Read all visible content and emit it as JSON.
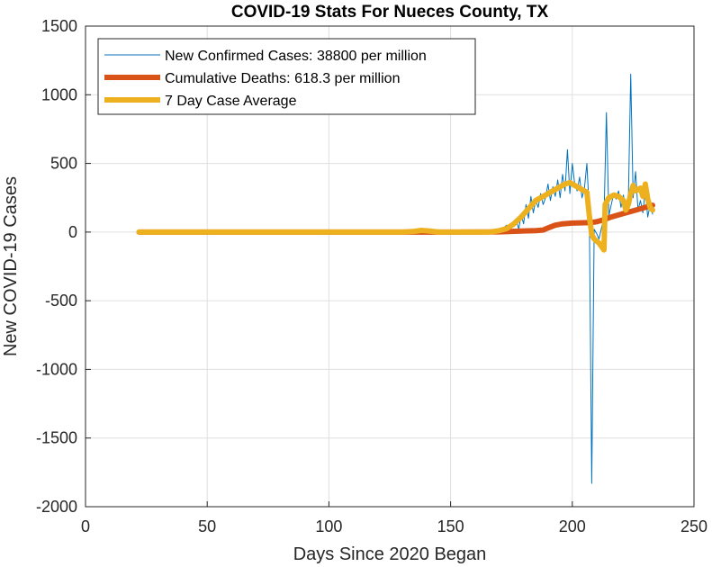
{
  "chart_data": {
    "type": "line",
    "title": "COVID-19 Stats For Nueces County, TX",
    "xlabel": "Days Since 2020 Began",
    "ylabel": "New COVID-19 Cases",
    "xlim": [
      0,
      250
    ],
    "ylim": [
      -2000,
      1500
    ],
    "xticks": [
      0,
      50,
      100,
      150,
      200,
      250
    ],
    "xtick_labels": [
      "0",
      "50",
      "100",
      "150",
      "200",
      "250"
    ],
    "yticks": [
      -2000,
      -1500,
      -1000,
      -500,
      0,
      500,
      1000,
      1500
    ],
    "ytick_labels": [
      "-2000",
      "-1500",
      "-1000",
      "-500",
      "0",
      "500",
      "1000",
      "1500"
    ],
    "grid": true,
    "legend_position": "top-left",
    "series": [
      {
        "name": "New Confirmed Cases: 38800 per million",
        "color": "#0072BD",
        "points": [
          [
            22,
            0
          ],
          [
            60,
            0
          ],
          [
            100,
            0
          ],
          [
            135,
            0
          ],
          [
            138,
            5
          ],
          [
            141,
            2
          ],
          [
            145,
            0
          ],
          [
            160,
            0
          ],
          [
            165,
            2
          ],
          [
            168,
            5
          ],
          [
            170,
            15
          ],
          [
            172,
            35
          ],
          [
            173,
            50
          ],
          [
            174,
            30
          ],
          [
            175,
            60
          ],
          [
            176,
            40
          ],
          [
            177,
            90
          ],
          [
            178,
            20
          ],
          [
            179,
            130
          ],
          [
            180,
            60
          ],
          [
            181,
            200
          ],
          [
            182,
            100
          ],
          [
            183,
            260
          ],
          [
            184,
            140
          ],
          [
            185,
            230
          ],
          [
            186,
            180
          ],
          [
            187,
            280
          ],
          [
            188,
            200
          ],
          [
            189,
            250
          ],
          [
            190,
            350
          ],
          [
            191,
            230
          ],
          [
            192,
            330
          ],
          [
            193,
            260
          ],
          [
            194,
            380
          ],
          [
            195,
            250
          ],
          [
            196,
            420
          ],
          [
            197,
            300
          ],
          [
            198,
            600
          ],
          [
            199,
            280
          ],
          [
            200,
            500
          ],
          [
            201,
            350
          ],
          [
            202,
            300
          ],
          [
            203,
            400
          ],
          [
            204,
            250
          ],
          [
            205,
            320
          ],
          [
            206,
            500
          ],
          [
            207,
            150
          ],
          [
            208,
            -1830
          ],
          [
            209,
            20
          ],
          [
            210,
            -10
          ],
          [
            211,
            -50
          ],
          [
            212,
            30
          ],
          [
            213,
            100
          ],
          [
            214,
            870
          ],
          [
            215,
            120
          ],
          [
            216,
            200
          ],
          [
            217,
            280
          ],
          [
            218,
            240
          ],
          [
            219,
            300
          ],
          [
            220,
            180
          ],
          [
            221,
            270
          ],
          [
            222,
            150
          ],
          [
            223,
            210
          ],
          [
            224,
            1150
          ],
          [
            225,
            250
          ],
          [
            226,
            440
          ],
          [
            227,
            160
          ],
          [
            228,
            230
          ],
          [
            229,
            140
          ],
          [
            230,
            300
          ],
          [
            231,
            110
          ],
          [
            232,
            200
          ],
          [
            233,
            130
          ]
        ]
      },
      {
        "name": "Cumulative Deaths: 618.3 per million",
        "color": "#D95319",
        "points": [
          [
            22,
            0
          ],
          [
            100,
            0
          ],
          [
            150,
            0
          ],
          [
            170,
            2
          ],
          [
            175,
            5
          ],
          [
            180,
            8
          ],
          [
            185,
            10
          ],
          [
            188,
            15
          ],
          [
            190,
            30
          ],
          [
            193,
            50
          ],
          [
            196,
            60
          ],
          [
            200,
            65
          ],
          [
            205,
            68
          ],
          [
            208,
            70
          ],
          [
            210,
            75
          ],
          [
            213,
            90
          ],
          [
            216,
            110
          ],
          [
            220,
            130
          ],
          [
            224,
            150
          ],
          [
            227,
            165
          ],
          [
            230,
            180
          ],
          [
            233,
            195
          ]
        ]
      },
      {
        "name": "7 Day Case Average",
        "color": "#EDB120",
        "points": [
          [
            22,
            0
          ],
          [
            100,
            0
          ],
          [
            130,
            0
          ],
          [
            135,
            5
          ],
          [
            138,
            12
          ],
          [
            141,
            8
          ],
          [
            145,
            0
          ],
          [
            165,
            0
          ],
          [
            168,
            5
          ],
          [
            170,
            10
          ],
          [
            173,
            25
          ],
          [
            176,
            60
          ],
          [
            179,
            110
          ],
          [
            182,
            170
          ],
          [
            185,
            230
          ],
          [
            188,
            260
          ],
          [
            191,
            290
          ],
          [
            194,
            320
          ],
          [
            197,
            350
          ],
          [
            199,
            360
          ],
          [
            201,
            340
          ],
          [
            204,
            310
          ],
          [
            206,
            290
          ],
          [
            207,
            120
          ],
          [
            208,
            -20
          ],
          [
            209,
            -50
          ],
          [
            211,
            -80
          ],
          [
            213,
            -130
          ],
          [
            213.5,
            200
          ],
          [
            215,
            250
          ],
          [
            217,
            270
          ],
          [
            219,
            260
          ],
          [
            221,
            230
          ],
          [
            222,
            160
          ],
          [
            223,
            200
          ],
          [
            224,
            280
          ],
          [
            225,
            340
          ],
          [
            226,
            300
          ],
          [
            228,
            320
          ],
          [
            229,
            260
          ],
          [
            230,
            350
          ],
          [
            231,
            240
          ],
          [
            232,
            180
          ],
          [
            233,
            160
          ]
        ]
      }
    ]
  }
}
